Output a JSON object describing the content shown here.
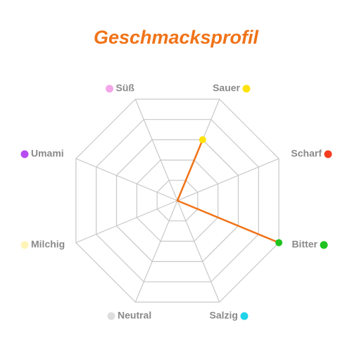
{
  "chart_data": {
    "type": "radar",
    "title": "Geschmacksprofil",
    "axes": [
      {
        "label": "Süß",
        "value": 0,
        "color": "#f4a6e8"
      },
      {
        "label": "Sauer",
        "value": 3,
        "color": "#ffe30a"
      },
      {
        "label": "Scharf",
        "value": 0,
        "color": "#f53d1f"
      },
      {
        "label": "Bitter",
        "value": 5,
        "color": "#1fc21f"
      },
      {
        "label": "Salzig",
        "value": 0,
        "color": "#1fd3e8"
      },
      {
        "label": "Neutral",
        "value": 0,
        "color": "#dedede"
      },
      {
        "label": "Milchig",
        "value": 0,
        "color": "#fff4b8"
      },
      {
        "label": "Umami",
        "value": 0,
        "color": "#b64cf0"
      }
    ],
    "scale_max": 5,
    "grid": true,
    "accent_color": "#f07318",
    "fill_color": "#fbc89e"
  }
}
